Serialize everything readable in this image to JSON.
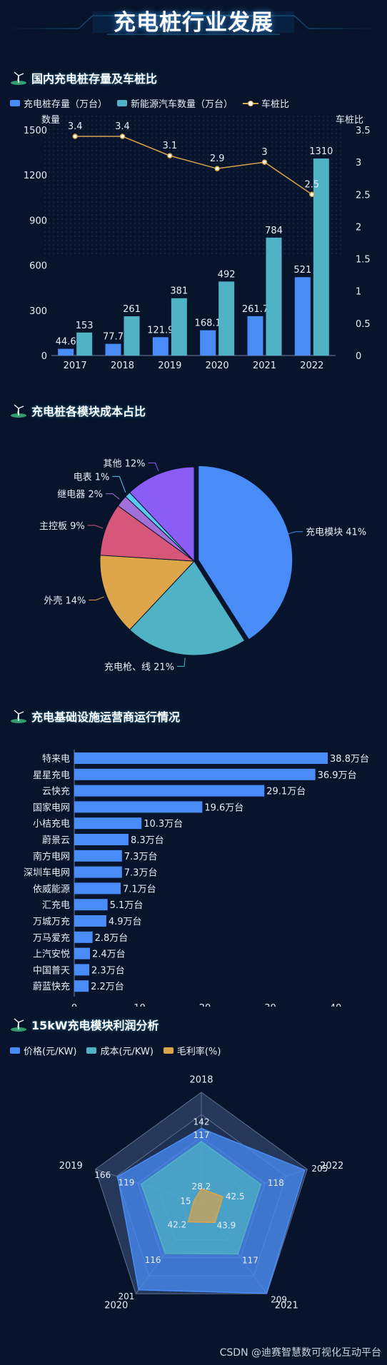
{
  "page": {
    "title": "充电桩行业发展"
  },
  "sections": {
    "s1": "国内充电桩存量及车桩比",
    "s2": "充电桩各模块成本占比",
    "s3": "充电基础设施运营商运行情况",
    "s4": "15kW充电模块利润分析"
  },
  "watermark": "CSDN @迪赛智慧数可视化互动平台",
  "chart_data": [
    {
      "type": "bar",
      "categories": [
        "2017",
        "2018",
        "2019",
        "2020",
        "2021",
        "2022"
      ],
      "series": [
        {
          "name": "充电桩存量（万台）",
          "values": [
            44.6,
            77.7,
            121.9,
            168.1,
            261.7,
            521
          ],
          "color": "#4a8cf7"
        },
        {
          "name": "新能源汽车数量（万台）",
          "values": [
            153,
            261,
            381,
            492,
            784,
            1310
          ],
          "color": "#4fb3c5"
        },
        {
          "name": "车桩比",
          "type": "line",
          "axis": "right",
          "values": [
            3.4,
            3.4,
            3.1,
            2.9,
            3,
            2.5
          ],
          "color": "#d9a44a"
        }
      ],
      "ylabel": "数量",
      "ylabel_right": "车桩比",
      "ylim": [
        0,
        1500
      ],
      "yticks": [
        0,
        300,
        600,
        900,
        1200,
        1500
      ],
      "ylim_right": [
        0,
        3.5
      ],
      "yticks_right": [
        0,
        0.5,
        1,
        1.5,
        2,
        2.5,
        3,
        3.5
      ],
      "legend": "top-left"
    },
    {
      "type": "pie",
      "slices": [
        {
          "label": "充电模块 41%",
          "value": 41,
          "color": "#4a8cf7"
        },
        {
          "label": "充电枪、线 21%",
          "value": 21,
          "color": "#4fb3c5"
        },
        {
          "label": "外壳 14%",
          "value": 14,
          "color": "#dda64a"
        },
        {
          "label": "主控板 9%",
          "value": 9,
          "color": "#d6577a"
        },
        {
          "label": "继电器 2%",
          "value": 2,
          "color": "#a070d8"
        },
        {
          "label": "电表 1%",
          "value": 1,
          "color": "#5ac8f0"
        },
        {
          "label": "其他 12%",
          "value": 12,
          "color": "#8b5cf6"
        }
      ]
    },
    {
      "type": "bar",
      "orientation": "horizontal",
      "categories": [
        "特来电",
        "星星充电",
        "云快充",
        "国家电网",
        "小桔充电",
        "蔚景云",
        "南方电网",
        "深圳车电网",
        "依威能源",
        "汇充电",
        "万城万充",
        "万马爱充",
        "上汽安悦",
        "中国普天",
        "蔚蓝快充"
      ],
      "values": [
        38.8,
        36.9,
        29.1,
        19.6,
        10.3,
        8.3,
        7.3,
        7.3,
        7.1,
        5.1,
        4.9,
        2.8,
        2.4,
        2.3,
        2.2
      ],
      "value_labels": [
        "38.8万台",
        "36.9万台",
        "29.1万台",
        "19.6万台",
        "10.3万台",
        "8.3万台",
        "7.3万台",
        "7.3万台",
        "7.1万台",
        "5.1万台",
        "4.9万台",
        "2.8万台",
        "2.4万台",
        "2.3万台",
        "2.2万台"
      ],
      "xlim": [
        0,
        40
      ],
      "xticks": [
        0,
        10,
        20,
        30,
        40
      ],
      "color": "#4a8cf7"
    },
    {
      "type": "radar",
      "axes": [
        "2018",
        "2022",
        "2021",
        "2020",
        "2019"
      ],
      "max": 210,
      "series": [
        {
          "name": "价格(元/KW)",
          "values": [
            142,
            205,
            209,
            201,
            166
          ],
          "color": "#4a8cf7"
        },
        {
          "name": "成本(元/KW)",
          "values": [
            117,
            118,
            117,
            116,
            119
          ],
          "color": "#4fb3c5"
        },
        {
          "name": "毛利率(%)",
          "values": [
            28.2,
            42.5,
            43.9,
            42.2,
            15
          ],
          "color": "#d9a44a"
        }
      ],
      "legend": "top-left"
    }
  ]
}
